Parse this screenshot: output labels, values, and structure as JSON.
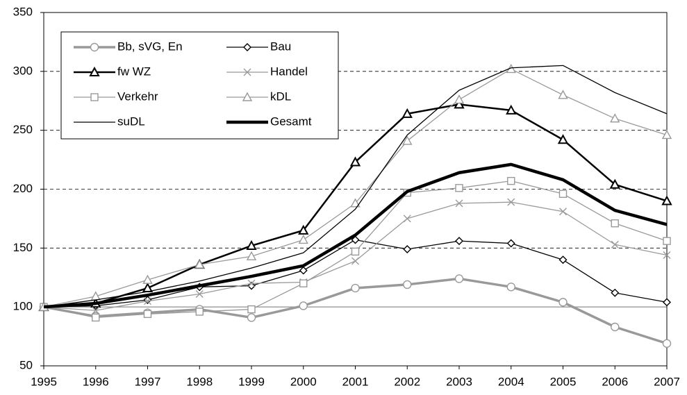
{
  "chart_data": {
    "type": "line",
    "categories": [
      "1995",
      "1996",
      "1997",
      "1998",
      "1999",
      "2000",
      "2001",
      "2002",
      "2003",
      "2004",
      "2005",
      "2006",
      "2007"
    ],
    "ylim": [
      50,
      350
    ],
    "yticks": [
      50,
      100,
      150,
      200,
      250,
      300,
      350
    ],
    "grid": true,
    "baseline": 100,
    "legend_position": "upper-left",
    "series": [
      {
        "name": "Bb, sVG, En",
        "color": "#999999",
        "width": 3.5,
        "marker": "circle",
        "values": [
          100,
          92,
          95,
          98,
          91,
          101,
          116,
          119,
          124,
          117,
          104,
          83,
          69
        ]
      },
      {
        "name": "Bau",
        "color": "#000000",
        "width": 1.3,
        "marker": "diamond",
        "values": [
          100,
          101,
          106,
          117,
          118,
          131,
          157,
          149,
          156,
          154,
          140,
          112,
          104
        ]
      },
      {
        "name": "fw WZ",
        "color": "#000000",
        "width": 2.5,
        "marker": "triangle",
        "values": [
          100,
          103,
          116,
          136,
          152,
          165,
          223,
          264,
          272,
          267,
          242,
          204,
          190
        ]
      },
      {
        "name": "Handel",
        "color": "#999999",
        "width": 1.3,
        "marker": "x",
        "values": [
          100,
          97,
          105,
          111,
          120,
          121,
          139,
          175,
          188,
          189,
          181,
          153,
          144
        ]
      },
      {
        "name": "Verkehr",
        "color": "#999999",
        "width": 1.3,
        "marker": "square",
        "values": [
          100,
          91,
          94,
          96,
          98,
          120,
          147,
          197,
          201,
          207,
          196,
          171,
          156
        ]
      },
      {
        "name": "kDL",
        "color": "#999999",
        "width": 1.3,
        "marker": "triangle",
        "values": [
          100,
          109,
          123,
          136,
          143,
          157,
          188,
          241,
          276,
          302,
          280,
          260,
          246
        ]
      },
      {
        "name": "suDL",
        "color": "#000000",
        "width": 1.3,
        "marker": "none",
        "values": [
          100,
          106,
          113,
          122,
          133,
          146,
          183,
          246,
          284,
          303,
          305,
          282,
          264
        ]
      },
      {
        "name": "Gesamt",
        "color": "#000000",
        "width": 4.5,
        "marker": "none",
        "values": [
          100,
          103,
          110,
          118,
          126,
          135,
          161,
          198,
          214,
          221,
          208,
          182,
          170
        ]
      }
    ]
  }
}
